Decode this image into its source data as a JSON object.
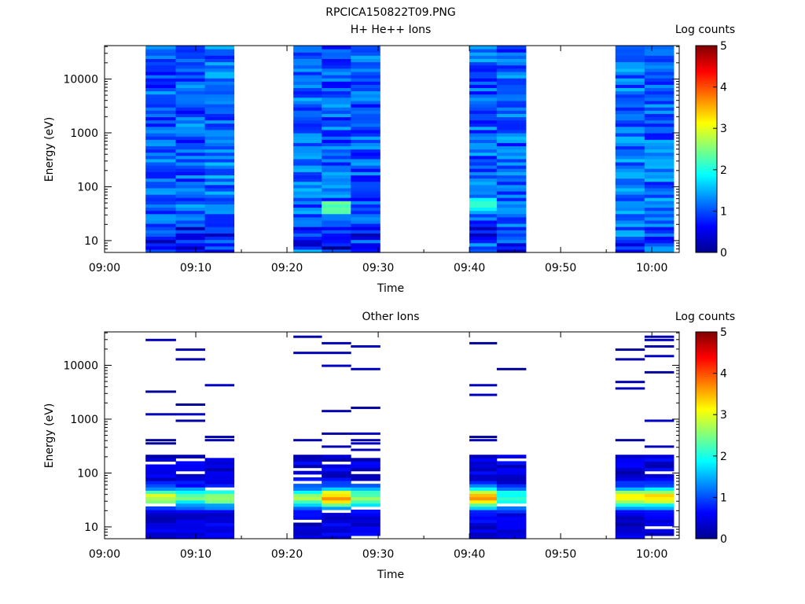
{
  "page_title": "RPCICA150822T09.PNG",
  "colorbar": {
    "colormap": "jet",
    "ticks": [
      "0",
      "1",
      "2",
      "3",
      "4",
      "5"
    ],
    "range": [
      0,
      5
    ]
  },
  "chart_data": [
    {
      "type": "heatmap",
      "title": "H+ He++ Ions",
      "xlabel": "Time",
      "ylabel": "Energy (eV)",
      "colorbar_label": "Log counts",
      "x_ticks": [
        "09:00",
        "09:10",
        "09:20",
        "09:30",
        "09:40",
        "09:50",
        "10:00"
      ],
      "y_ticks": [
        "10",
        "100",
        "1000",
        "10000"
      ],
      "xlim_minutes": [
        0,
        63
      ],
      "ylim_log10": [
        0.78,
        4.62
      ],
      "y_scale": "log",
      "scans": [
        {
          "start": 4.5,
          "end": 7.8
        },
        {
          "start": 7.8,
          "end": 11.0
        },
        {
          "start": 11.0,
          "end": 14.2
        },
        {
          "start": 20.7,
          "end": 23.8
        },
        {
          "start": 23.8,
          "end": 27.0
        },
        {
          "start": 27.0,
          "end": 30.2
        },
        {
          "start": 40.0,
          "end": 43.0
        },
        {
          "start": 43.0,
          "end": 46.2
        },
        {
          "start": 56.0,
          "end": 59.2
        },
        {
          "start": 59.2,
          "end": 62.4
        }
      ],
      "profile": {
        "base": [
          1.05,
          1.15,
          1.05,
          1.1,
          1.15
        ],
        "low_energy_dip": 0.6,
        "noise": 0.45
      },
      "hotspots": [
        {
          "scan": 4,
          "log_energy": 1.65,
          "value": 2.4
        },
        {
          "scan": 6,
          "log_energy": 1.7,
          "value": 2.2
        }
      ],
      "min_count": 0
    },
    {
      "type": "heatmap",
      "title": "Other Ions",
      "xlabel": "Time",
      "ylabel": "Energy (eV)",
      "colorbar_label": "Log counts",
      "x_ticks": [
        "09:00",
        "09:10",
        "09:20",
        "09:30",
        "09:40",
        "09:50",
        "10:00"
      ],
      "y_ticks": [
        "10",
        "100",
        "1000",
        "10000"
      ],
      "xlim_minutes": [
        0,
        63
      ],
      "ylim_log10": [
        0.78,
        4.62
      ],
      "y_scale": "log",
      "scans": [
        {
          "start": 4.5,
          "end": 7.8
        },
        {
          "start": 7.8,
          "end": 11.0
        },
        {
          "start": 11.0,
          "end": 14.2
        },
        {
          "start": 20.7,
          "end": 23.8
        },
        {
          "start": 23.8,
          "end": 27.0
        },
        {
          "start": 27.0,
          "end": 30.2
        },
        {
          "start": 40.0,
          "end": 43.0
        },
        {
          "start": 43.0,
          "end": 46.2
        },
        {
          "start": 56.0,
          "end": 59.2
        },
        {
          "start": 59.2,
          "end": 62.4
        }
      ],
      "dense_below_log10": 2.35,
      "peak": {
        "log_energy": 1.55,
        "width": 0.18
      },
      "scan_peaks": [
        2.9,
        2.3,
        2.6,
        2.6,
        3.6,
        2.5,
        3.8,
        2.2,
        3.2,
        3.3
      ],
      "sparse_lines": 6,
      "min_count": 0
    }
  ]
}
